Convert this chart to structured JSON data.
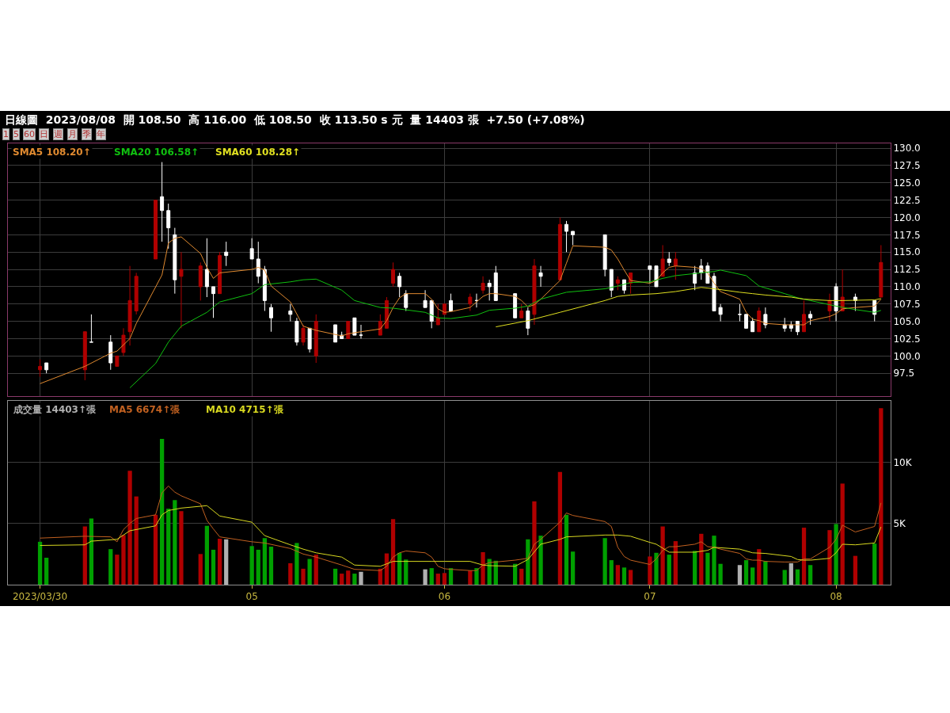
{
  "chart_data": [
    {
      "type": "candlestick",
      "title": "日線圖  2023/08/08  開 108.50  高 116.00  低 108.50  收 113.50 s 元  量 14403 張  +7.50 (+7.08%)",
      "annotations": [
        "1",
        "5",
        "60",
        "日",
        "週",
        "月",
        "季",
        "年"
      ],
      "x": [
        "2023-03-30",
        "2023-03-31",
        "2023-04-06",
        "2023-04-07",
        "2023-04-10",
        "2023-04-11",
        "2023-04-12",
        "2023-04-13",
        "2023-04-14",
        "2023-04-17",
        "2023-04-18",
        "2023-04-19",
        "2023-04-20",
        "2023-04-21",
        "2023-04-24",
        "2023-04-25",
        "2023-04-26",
        "2023-04-27",
        "2023-04-28",
        "2023-05-02",
        "2023-05-03",
        "2023-05-04",
        "2023-05-05",
        "2023-05-08",
        "2023-05-09",
        "2023-05-10",
        "2023-05-11",
        "2023-05-12",
        "2023-05-15",
        "2023-05-16",
        "2023-05-17",
        "2023-05-18",
        "2023-05-19",
        "2023-05-22",
        "2023-05-23",
        "2023-05-24",
        "2023-05-25",
        "2023-05-26",
        "2023-05-29",
        "2023-05-30",
        "2023-05-31",
        "2023-06-01",
        "2023-06-02",
        "2023-06-05",
        "2023-06-06",
        "2023-06-07",
        "2023-06-08",
        "2023-06-09",
        "2023-06-12",
        "2023-06-13",
        "2023-06-14",
        "2023-06-15",
        "2023-06-16",
        "2023-06-19",
        "2023-06-20",
        "2023-06-21",
        "2023-06-26",
        "2023-06-27",
        "2023-06-28",
        "2023-06-29",
        "2023-06-30",
        "2023-07-03",
        "2023-07-04",
        "2023-07-05",
        "2023-07-06",
        "2023-07-07",
        "2023-07-10",
        "2023-07-11",
        "2023-07-12",
        "2023-07-13",
        "2023-07-14",
        "2023-07-17",
        "2023-07-18",
        "2023-07-19",
        "2023-07-20",
        "2023-07-21",
        "2023-07-24",
        "2023-07-25",
        "2023-07-26",
        "2023-07-27",
        "2023-07-28",
        "2023-07-31",
        "2023-08-01",
        "2023-08-02",
        "2023-08-04",
        "2023-08-07",
        "2023-08-08"
      ],
      "xlim": [
        "2023-03-25",
        "2023-08-09T12:00"
      ],
      "xticks": [
        {
          "value": "2023-03-30",
          "label": null
        },
        {
          "value": "2023-05-02",
          "label": null
        },
        {
          "value": "2023-06-01",
          "label": null
        },
        {
          "value": "2023-07-03",
          "label": null
        },
        {
          "value": "2023-08-01",
          "label": null
        }
      ],
      "ylim": [
        94.2,
        130.7
      ],
      "yticks": [
        97.5,
        {
          "value": 100,
          "label": "100.0"
        },
        102.5,
        {
          "value": 105,
          "label": "105.0"
        },
        107.5,
        {
          "value": 110,
          "label": "110.0"
        },
        112.5,
        {
          "value": 115,
          "label": "115.0"
        },
        117.5,
        {
          "value": 120,
          "label": "120.0"
        },
        122.5,
        {
          "value": 125,
          "label": "125.0"
        },
        127.5,
        {
          "value": 130,
          "label": "130.0"
        }
      ],
      "tick_labels": "y",
      "grid": true,
      "legend": false,
      "series": [
        {
          "ohlc": [
            [
              98,
              99.5,
              97,
              98.5
            ],
            [
              99,
              99,
              97.5,
              98
            ],
            [
              98,
              103.5,
              96.5,
              103.5
            ],
            [
              102,
              106,
              102,
              102
            ],
            [
              102,
              103,
              98,
              99
            ],
            [
              98.5,
              100,
              98.5,
              100
            ],
            [
              100.5,
              104,
              100,
              103
            ],
            [
              103.5,
              113,
              101.5,
              108
            ],
            [
              106.5,
              112,
              106,
              111.5
            ],
            [
              114,
              122.5,
              114,
              122.5
            ],
            [
              123,
              128,
              116.5,
              121
            ],
            [
              121,
              122,
              115.5,
              118.5
            ],
            [
              117.5,
              118.5,
              109,
              111
            ],
            [
              111.5,
              115,
              104,
              112.5
            ],
            [
              110,
              113.5,
              108,
              113
            ],
            [
              112.5,
              117,
              108.5,
              110
            ],
            [
              110,
              110,
              105.5,
              109
            ],
            [
              109,
              115,
              109,
              114.5
            ],
            [
              115,
              116.5,
              113,
              114.5
            ],
            [
              115.5,
              117,
              114,
              114
            ],
            [
              114,
              116.5,
              110.5,
              111.5
            ],
            [
              112.5,
              113,
              106.5,
              108
            ],
            [
              107,
              107.5,
              103.5,
              105.5
            ],
            [
              106.5,
              107.5,
              105,
              106
            ],
            [
              105,
              105.5,
              101.5,
              102
            ],
            [
              102,
              104.5,
              101.5,
              104
            ],
            [
              104,
              104,
              100.5,
              101
            ],
            [
              100,
              106,
              99,
              105
            ],
            [
              104.5,
              104.5,
              102,
              102
            ],
            [
              103,
              103.5,
              102.5,
              102.5
            ],
            [
              102.5,
              105,
              102.5,
              105
            ],
            [
              105.5,
              105.5,
              103,
              103
            ],
            [
              103,
              104.5,
              102.5,
              103
            ],
            [
              103,
              106,
              103,
              105
            ],
            [
              104,
              108.5,
              104,
              108
            ],
            [
              110.5,
              113.5,
              110,
              112.5
            ],
            [
              111.5,
              112,
              108.5,
              110
            ],
            [
              109,
              109.5,
              106.5,
              107
            ],
            [
              108,
              109.5,
              107,
              107
            ],
            [
              108,
              108,
              104,
              105
            ],
            [
              104.5,
              107.5,
              104.5,
              105.5
            ],
            [
              106,
              107.5,
              106,
              107.5
            ],
            [
              108,
              109,
              106.5,
              106.5
            ],
            [
              107.5,
              109,
              106.5,
              108.5
            ],
            [
              108,
              109,
              107,
              108
            ],
            [
              109.5,
              111.5,
              109,
              110.5
            ],
            [
              110.5,
              111,
              108,
              110
            ],
            [
              112,
              113,
              108,
              108
            ],
            [
              109,
              109,
              105.5,
              105.5
            ],
            [
              105.5,
              107.5,
              105.5,
              106.5
            ],
            [
              106.5,
              107,
              103,
              104
            ],
            [
              106,
              114,
              104.5,
              113
            ],
            [
              112,
              113,
              110,
              111.5
            ],
            [
              111,
              120,
              111,
              119
            ],
            [
              119,
              119.5,
              115,
              118
            ],
            [
              118,
              118,
              116,
              117.5
            ],
            [
              117.5,
              117.5,
              111.5,
              112.5
            ],
            [
              112.5,
              112.5,
              108.5,
              109.5
            ],
            [
              110.5,
              111.5,
              109.5,
              111
            ],
            [
              111,
              111,
              109,
              109.5
            ],
            [
              110.5,
              112,
              109,
              112
            ],
            [
              113,
              113,
              110.5,
              112.5
            ],
            [
              113,
              113,
              110,
              110
            ],
            [
              111.5,
              116,
              111.5,
              114
            ],
            [
              114,
              115,
              113,
              113.5
            ],
            [
              113,
              115,
              111,
              114
            ],
            [
              112,
              113,
              109.5,
              110.5
            ],
            [
              113,
              114,
              111,
              112
            ],
            [
              113,
              113.5,
              110.5,
              110.5
            ],
            [
              111.5,
              112,
              106.5,
              106.5
            ],
            [
              107,
              107.5,
              105,
              106
            ],
            [
              106,
              107.5,
              105,
              106
            ],
            [
              106,
              106,
              104,
              104
            ],
            [
              105,
              105.5,
              103.5,
              103.5
            ],
            [
              103.5,
              107,
              103.5,
              106.5
            ],
            [
              106,
              107,
              104,
              104.5
            ],
            [
              104.5,
              105.5,
              103.5,
              104
            ],
            [
              104.5,
              105,
              103.5,
              104
            ],
            [
              105,
              105,
              103,
              103.5
            ],
            [
              103.5,
              108,
              103.5,
              106
            ],
            [
              106,
              106.5,
              104.5,
              105.5
            ],
            [
              106.5,
              109,
              105,
              108
            ],
            [
              110,
              110.5,
              105,
              106.5
            ],
            [
              106.5,
              112.5,
              106.5,
              108.5
            ],
            [
              108.5,
              109,
              106.5,
              108
            ],
            [
              108,
              108,
              105,
              106
            ],
            [
              108.5,
              116,
              108.5,
              113.5
            ]
          ],
          "colors": [
            "#b00000",
            "#ffffff",
            "#b00000",
            "#ffffff",
            "#ffffff",
            "#b00000",
            "#b00000",
            "#b00000",
            "#b00000",
            "#b00000",
            "#ffffff",
            "#ffffff",
            "#ffffff",
            "#b00000",
            "#b00000",
            "#ffffff",
            "#ffffff",
            "#b00000",
            "#ffffff",
            "#ffffff",
            "#ffffff",
            "#ffffff",
            "#ffffff",
            "#ffffff",
            "#ffffff",
            "#b00000",
            "#ffffff",
            "#b00000",
            "#ffffff",
            "#ffffff",
            "#b00000",
            "#ffffff",
            "#ffffff",
            "#b00000",
            "#b00000",
            "#b00000",
            "#ffffff",
            "#ffffff",
            "#ffffff",
            "#ffffff",
            "#b00000",
            "#b00000",
            "#ffffff",
            "#b00000",
            "#ffffff",
            "#b00000",
            "#ffffff",
            "#ffffff",
            "#ffffff",
            "#b00000",
            "#ffffff",
            "#b00000",
            "#ffffff",
            "#b00000",
            "#ffffff",
            "#ffffff",
            "#ffffff",
            "#ffffff",
            "#b00000",
            "#ffffff",
            "#b00000",
            "#ffffff",
            "#ffffff",
            "#b00000",
            "#ffffff",
            "#b00000",
            "#ffffff",
            "#ffffff",
            "#ffffff",
            "#ffffff",
            "#ffffff",
            "#ffffff",
            "#ffffff",
            "#ffffff",
            "#b00000",
            "#ffffff",
            "#ffffff",
            "#ffffff",
            "#ffffff",
            "#b00000",
            "#ffffff",
            "#b00000",
            "#ffffff",
            "#b00000",
            "#ffffff",
            "#ffffff",
            "#b00000"
          ]
        },
        {
          "type": "line",
          "name": "SMA5 108.20↑",
          "color": "#e08a30",
          "x": [
            "2023-03-30",
            "2023-04-06",
            "2023-04-10",
            "2023-04-11",
            "2023-04-13",
            "2023-04-14",
            "2023-04-18",
            "2023-04-19",
            "2023-04-20",
            "2023-04-21",
            "2023-04-24",
            "2023-04-25",
            "2023-04-26",
            "2023-04-27",
            "2023-05-02",
            "2023-05-03",
            "2023-05-04",
            "2023-05-05",
            "2023-05-08",
            "2023-05-10",
            "2023-05-12",
            "2023-05-16",
            "2023-05-17",
            "2023-05-19",
            "2023-05-22",
            "2023-05-23",
            "2023-05-24",
            "2023-05-25",
            "2023-05-26",
            "2023-05-29",
            "2023-05-30",
            "2023-05-31",
            "2023-06-01",
            "2023-06-02",
            "2023-06-05",
            "2023-06-06",
            "2023-06-07",
            "2023-06-08",
            "2023-06-09",
            "2023-06-12",
            "2023-06-13",
            "2023-06-14",
            "2023-06-15",
            "2023-06-16",
            "2023-06-19",
            "2023-06-20",
            "2023-06-21",
            "2023-06-26",
            "2023-06-27",
            "2023-06-28",
            "2023-06-29",
            "2023-06-30",
            "2023-07-03",
            "2023-07-04",
            "2023-07-05",
            "2023-07-06",
            "2023-07-07",
            "2023-07-10",
            "2023-07-11",
            "2023-07-12",
            "2023-07-13",
            "2023-07-14",
            "2023-07-17",
            "2023-07-18",
            "2023-07-19",
            "2023-07-20",
            "2023-07-21",
            "2023-07-24",
            "2023-07-26",
            "2023-07-27",
            "2023-07-28",
            "2023-07-31",
            "2023-08-01",
            "2023-08-02",
            "2023-08-04",
            "2023-08-07",
            "2023-08-08"
          ],
          "values": [
            96,
            98.5,
            100.4,
            100.7,
            102.5,
            104.7,
            111.7,
            116.3,
            117,
            117.2,
            114.8,
            112.8,
            111.2,
            112,
            112.5,
            112.8,
            112.4,
            110.1,
            107.8,
            104.3,
            103.7,
            102.9,
            103.2,
            103.5,
            103.9,
            105.1,
            107,
            108.4,
            109,
            109,
            108.2,
            106.8,
            106.3,
            106.4,
            107,
            107.8,
            108.6,
            109,
            109,
            108.6,
            108,
            107.1,
            107.4,
            108.2,
            110.9,
            113.4,
            115.9,
            115.7,
            115.3,
            114,
            112.4,
            110.9,
            110.5,
            110.9,
            112,
            112.8,
            113,
            112.8,
            112.6,
            112,
            110.5,
            109.3,
            108.2,
            106.3,
            105.3,
            105.1,
            104.7,
            104.5,
            104.5,
            104.5,
            105.1,
            105.7,
            106.1,
            106.8,
            107,
            107.2,
            108.2
          ]
        },
        {
          "type": "line",
          "name": "SMA20 106.58↑",
          "color": "#10c010",
          "x": [
            "2023-04-13",
            "2023-04-17",
            "2023-04-19",
            "2023-04-21",
            "2023-04-25",
            "2023-04-27",
            "2023-05-02",
            "2023-05-04",
            "2023-05-08",
            "2023-05-10",
            "2023-05-12",
            "2023-05-16",
            "2023-05-18",
            "2023-05-22",
            "2023-05-24",
            "2023-05-29",
            "2023-05-31",
            "2023-06-02",
            "2023-06-06",
            "2023-06-08",
            "2023-06-12",
            "2023-06-14",
            "2023-06-16",
            "2023-06-20",
            "2023-06-26",
            "2023-06-28",
            "2023-06-30",
            "2023-07-03",
            "2023-07-05",
            "2023-07-07",
            "2023-07-11",
            "2023-07-13",
            "2023-07-14",
            "2023-07-18",
            "2023-07-20",
            "2023-07-24",
            "2023-07-26",
            "2023-07-28",
            "2023-08-01",
            "2023-08-04",
            "2023-08-07",
            "2023-08-08"
          ],
          "values": [
            95.4,
            98.9,
            102,
            104.3,
            106.3,
            107.8,
            109,
            110.3,
            110.7,
            111,
            111.1,
            109.5,
            108,
            107,
            106.9,
            106.3,
            105.5,
            105.4,
            105.9,
            106.6,
            106.9,
            107.2,
            108.2,
            109.2,
            109.7,
            110.1,
            110.6,
            110.7,
            111.2,
            111.6,
            112,
            112.2,
            112.4,
            111.6,
            110.1,
            109,
            108.4,
            108,
            107.2,
            106.7,
            106.3,
            106.58
          ]
        },
        {
          "type": "line",
          "name": "SMA60 108.28↑",
          "color": "#e0e020",
          "x": [
            "2023-06-09",
            "2023-06-14",
            "2023-06-19",
            "2023-06-26",
            "2023-06-28",
            "2023-06-30",
            "2023-07-04",
            "2023-07-07",
            "2023-07-11",
            "2023-07-13",
            "2023-07-17",
            "2023-07-19",
            "2023-07-21",
            "2023-07-25",
            "2023-07-27",
            "2023-07-31",
            "2023-08-02",
            "2023-08-07",
            "2023-08-08"
          ],
          "values": [
            104.2,
            105.1,
            106.3,
            108,
            108.6,
            108.8,
            109,
            109.3,
            109.9,
            109.7,
            109.2,
            109,
            108.8,
            108.5,
            108.2,
            108,
            108,
            108.1,
            108.28
          ]
        }
      ]
    },
    {
      "type": "bar",
      "x": [
        "2023-03-30",
        "2023-03-31",
        "2023-04-06",
        "2023-04-07",
        "2023-04-10",
        "2023-04-11",
        "2023-04-12",
        "2023-04-13",
        "2023-04-14",
        "2023-04-17",
        "2023-04-18",
        "2023-04-19",
        "2023-04-20",
        "2023-04-21",
        "2023-04-24",
        "2023-04-25",
        "2023-04-26",
        "2023-04-27",
        "2023-04-28",
        "2023-05-02",
        "2023-05-03",
        "2023-05-04",
        "2023-05-05",
        "2023-05-08",
        "2023-05-09",
        "2023-05-10",
        "2023-05-11",
        "2023-05-12",
        "2023-05-15",
        "2023-05-16",
        "2023-05-17",
        "2023-05-18",
        "2023-05-19",
        "2023-05-22",
        "2023-05-23",
        "2023-05-24",
        "2023-05-25",
        "2023-05-26",
        "2023-05-29",
        "2023-05-30",
        "2023-05-31",
        "2023-06-01",
        "2023-06-02",
        "2023-06-05",
        "2023-06-06",
        "2023-06-07",
        "2023-06-08",
        "2023-06-09",
        "2023-06-12",
        "2023-06-13",
        "2023-06-14",
        "2023-06-15",
        "2023-06-16",
        "2023-06-19",
        "2023-06-20",
        "2023-06-21",
        "2023-06-26",
        "2023-06-27",
        "2023-06-28",
        "2023-06-29",
        "2023-06-30",
        "2023-07-03",
        "2023-07-04",
        "2023-07-05",
        "2023-07-06",
        "2023-07-07",
        "2023-07-10",
        "2023-07-11",
        "2023-07-12",
        "2023-07-13",
        "2023-07-14",
        "2023-07-17",
        "2023-07-18",
        "2023-07-19",
        "2023-07-20",
        "2023-07-21",
        "2023-07-24",
        "2023-07-25",
        "2023-07-26",
        "2023-07-27",
        "2023-07-28",
        "2023-07-31",
        "2023-08-01",
        "2023-08-02",
        "2023-08-04",
        "2023-08-07",
        "2023-08-08"
      ],
      "xlim": [
        "2023-03-25",
        "2023-08-09T12:00"
      ],
      "xticks": [
        {
          "value": "2023-03-30",
          "label": "2023/03/30"
        },
        {
          "value": "2023-05-02",
          "label": "05"
        },
        {
          "value": "2023-06-01",
          "label": "06"
        },
        {
          "value": "2023-07-03",
          "label": "07"
        },
        {
          "value": "2023-08-01",
          "label": "08"
        }
      ],
      "ylim": [
        0,
        15000
      ],
      "yticks": [
        {
          "value": 5000,
          "label": "5K"
        },
        {
          "value": 10000,
          "label": "10K"
        }
      ],
      "grid": true,
      "legend": false,
      "series": [
        {
          "name": "成交量 14403↑張",
          "color": "#b0b0b0",
          "values": [
            3500,
            2200,
            4750,
            5400,
            2900,
            2450,
            4050,
            9300,
            7200,
            5700,
            11900,
            6200,
            6900,
            6000,
            2500,
            4800,
            2850,
            3750,
            3700,
            3150,
            2850,
            3800,
            3100,
            1750,
            3400,
            1300,
            2100,
            2450,
            1300,
            900,
            1150,
            900,
            1050,
            1300,
            2550,
            5350,
            2600,
            2050,
            1250,
            1350,
            900,
            950,
            1350,
            1150,
            1350,
            2650,
            2100,
            1950,
            1700,
            1300,
            3700,
            6800,
            4000,
            9200,
            5700,
            2700,
            3800,
            2000,
            1600,
            1400,
            1200,
            2300,
            2600,
            4750,
            2450,
            3550,
            2750,
            4150,
            2600,
            4000,
            1700,
            1600,
            2000,
            1400,
            2900,
            1900,
            1200,
            1750,
            1250,
            4650,
            1600,
            4450,
            4950,
            8250,
            2350,
            3350,
            14403
          ],
          "colors": [
            "#00a000",
            "#00a000",
            "#b00000",
            "#00a000",
            "#00a000",
            "#b00000",
            "#b00000",
            "#b00000",
            "#b00000",
            "#b00000",
            "#00a000",
            "#00a000",
            "#00a000",
            "#b00000",
            "#b00000",
            "#00a000",
            "#00a000",
            "#b00000",
            "#b0b0b0",
            "#00a000",
            "#00a000",
            "#00a000",
            "#00a000",
            "#b00000",
            "#00a000",
            "#b00000",
            "#00a000",
            "#b00000",
            "#00a000",
            "#b00000",
            "#b00000",
            "#00a000",
            "#b0b0b0",
            "#b00000",
            "#b00000",
            "#b00000",
            "#00a000",
            "#00a000",
            "#b0b0b0",
            "#00a000",
            "#b00000",
            "#b00000",
            "#00a000",
            "#b00000",
            "#00a000",
            "#b00000",
            "#00a000",
            "#00a000",
            "#00a000",
            "#b00000",
            "#00a000",
            "#b00000",
            "#00a000",
            "#b00000",
            "#00a000",
            "#00a000",
            "#00a000",
            "#00a000",
            "#b00000",
            "#00a000",
            "#b00000",
            "#b00000",
            "#00a000",
            "#b00000",
            "#00a000",
            "#b00000",
            "#00a000",
            "#b00000",
            "#00a000",
            "#00a000",
            "#00a000",
            "#b0b0b0",
            "#00a000",
            "#00a000",
            "#b00000",
            "#00a000",
            "#00a000",
            "#b0b0b0",
            "#00a000",
            "#b00000",
            "#00a000",
            "#b00000",
            "#00a000",
            "#b00000",
            "#b00000",
            "#00a000",
            "#b00000"
          ]
        },
        {
          "type": "line",
          "name": "MA5 6674↑張",
          "color": "#c06020",
          "x": [
            "2023-03-30",
            "2023-04-06",
            "2023-04-10",
            "2023-04-11",
            "2023-04-12",
            "2023-04-13",
            "2023-04-14",
            "2023-04-17",
            "2023-04-18",
            "2023-04-19",
            "2023-04-20",
            "2023-04-21",
            "2023-04-24",
            "2023-04-25",
            "2023-04-26",
            "2023-04-27",
            "2023-05-02",
            "2023-05-04",
            "2023-05-08",
            "2023-05-10",
            "2023-05-12",
            "2023-05-16",
            "2023-05-18",
            "2023-05-22",
            "2023-05-23",
            "2023-05-24",
            "2023-05-25",
            "2023-05-26",
            "2023-05-29",
            "2023-05-30",
            "2023-05-31",
            "2023-06-01",
            "2023-06-02",
            "2023-06-05",
            "2023-06-06",
            "2023-06-07",
            "2023-06-08",
            "2023-06-12",
            "2023-06-14",
            "2023-06-15",
            "2023-06-16",
            "2023-06-19",
            "2023-06-20",
            "2023-06-21",
            "2023-06-26",
            "2023-06-27",
            "2023-06-28",
            "2023-06-29",
            "2023-06-30",
            "2023-07-03",
            "2023-07-04",
            "2023-07-05",
            "2023-07-06",
            "2023-07-07",
            "2023-07-10",
            "2023-07-11",
            "2023-07-12",
            "2023-07-13",
            "2023-07-14",
            "2023-07-17",
            "2023-07-18",
            "2023-07-19",
            "2023-07-20",
            "2023-07-21",
            "2023-07-24",
            "2023-07-25",
            "2023-07-26",
            "2023-07-27",
            "2023-07-28",
            "2023-07-31",
            "2023-08-01",
            "2023-08-02",
            "2023-08-04",
            "2023-08-07",
            "2023-08-08"
          ],
          "values": [
            3800,
            3950,
            3900,
            3500,
            4500,
            5000,
            5400,
            5700,
            7500,
            8050,
            7550,
            7250,
            6600,
            5250,
            4550,
            3900,
            3500,
            3400,
            2950,
            2500,
            2250,
            1600,
            1250,
            1150,
            1500,
            2250,
            2600,
            2750,
            2600,
            2250,
            1500,
            1300,
            1250,
            1150,
            1150,
            1600,
            1800,
            2000,
            2150,
            3300,
            3700,
            5100,
            5850,
            5650,
            5150,
            4750,
            3050,
            2300,
            2000,
            1650,
            2100,
            2800,
            3100,
            3100,
            3300,
            3500,
            3100,
            3050,
            2900,
            2550,
            2100,
            2000,
            2000,
            1900,
            1850,
            1850,
            1850,
            2100,
            2100,
            3050,
            3700,
            4850,
            4300,
            4750,
            6674
          ]
        },
        {
          "type": "line",
          "name": "MA10 4715↑張",
          "color": "#d8d820",
          "x": [
            "2023-03-30",
            "2023-04-06",
            "2023-04-07",
            "2023-04-11",
            "2023-04-13",
            "2023-04-17",
            "2023-04-18",
            "2023-04-19",
            "2023-04-21",
            "2023-04-25",
            "2023-04-27",
            "2023-05-02",
            "2023-05-04",
            "2023-05-08",
            "2023-05-10",
            "2023-05-12",
            "2023-05-16",
            "2023-05-18",
            "2023-05-22",
            "2023-05-24",
            "2023-05-26",
            "2023-05-30",
            "2023-06-01",
            "2023-06-05",
            "2023-06-07",
            "2023-06-08",
            "2023-06-12",
            "2023-06-14",
            "2023-06-16",
            "2023-06-19",
            "2023-06-20",
            "2023-06-26",
            "2023-06-28",
            "2023-06-30",
            "2023-07-03",
            "2023-07-04",
            "2023-07-06",
            "2023-07-10",
            "2023-07-12",
            "2023-07-13",
            "2023-07-17",
            "2023-07-19",
            "2023-07-21",
            "2023-07-25",
            "2023-07-26",
            "2023-07-27",
            "2023-07-28",
            "2023-07-31",
            "2023-08-01",
            "2023-08-02",
            "2023-08-04",
            "2023-08-07",
            "2023-08-08"
          ],
          "values": [
            3200,
            3250,
            3550,
            3700,
            4400,
            4800,
            5700,
            6050,
            6250,
            6450,
            5600,
            5100,
            4000,
            3250,
            2900,
            2600,
            2250,
            1600,
            1500,
            1900,
            1900,
            1900,
            1900,
            1900,
            1600,
            1550,
            1500,
            2050,
            3300,
            3700,
            3900,
            4050,
            4050,
            3950,
            3450,
            3300,
            2650,
            2650,
            2800,
            3050,
            2900,
            2600,
            2550,
            2300,
            2050,
            2000,
            2000,
            2150,
            2600,
            3300,
            3250,
            3400,
            4715
          ]
        }
      ]
    }
  ]
}
